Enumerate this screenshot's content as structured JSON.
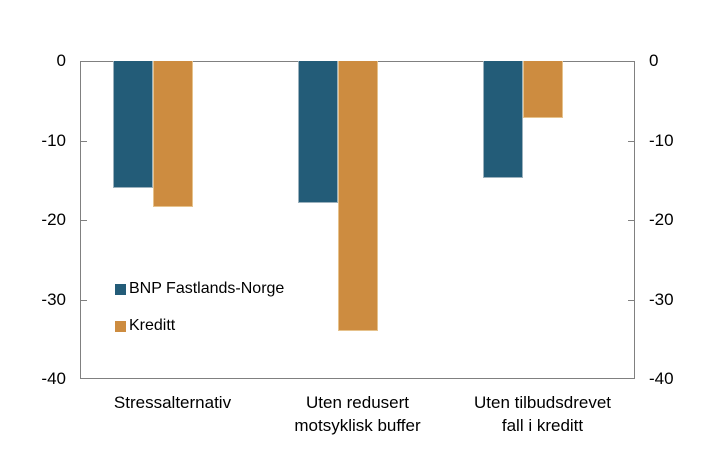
{
  "chart_data": {
    "type": "bar",
    "title": "",
    "xlabel": "",
    "ylabel": "",
    "categories": [
      "Stressalternativ",
      "Uten redusert\nmotsyklisk buffer",
      "Uten tilbudsdrevet\nfall i kreditt"
    ],
    "series": [
      {
        "name": "BNP Fastlands-Norge",
        "color": "#235C78",
        "edge_color": "#9BB1BD",
        "values": [
          -16.0,
          -17.9,
          -14.7
        ]
      },
      {
        "name": "Kreditt",
        "color": "#CD8C40",
        "edge_color": "#E6C28C",
        "values": [
          -18.4,
          -34.0,
          -7.2
        ]
      }
    ],
    "ylim": [
      -40,
      0
    ],
    "yticks": [
      0,
      -10,
      -20,
      -30,
      -40
    ],
    "ytick_labels_left": [
      "0",
      "-10",
      "-20",
      "-30",
      "-40"
    ],
    "ytick_labels_right": [
      "0",
      "-10",
      "-20",
      "-30",
      "-40"
    ],
    "axis_color": "#808080",
    "text_color": "#000000",
    "grid": false,
    "legend_position": "inside bottom-left"
  }
}
